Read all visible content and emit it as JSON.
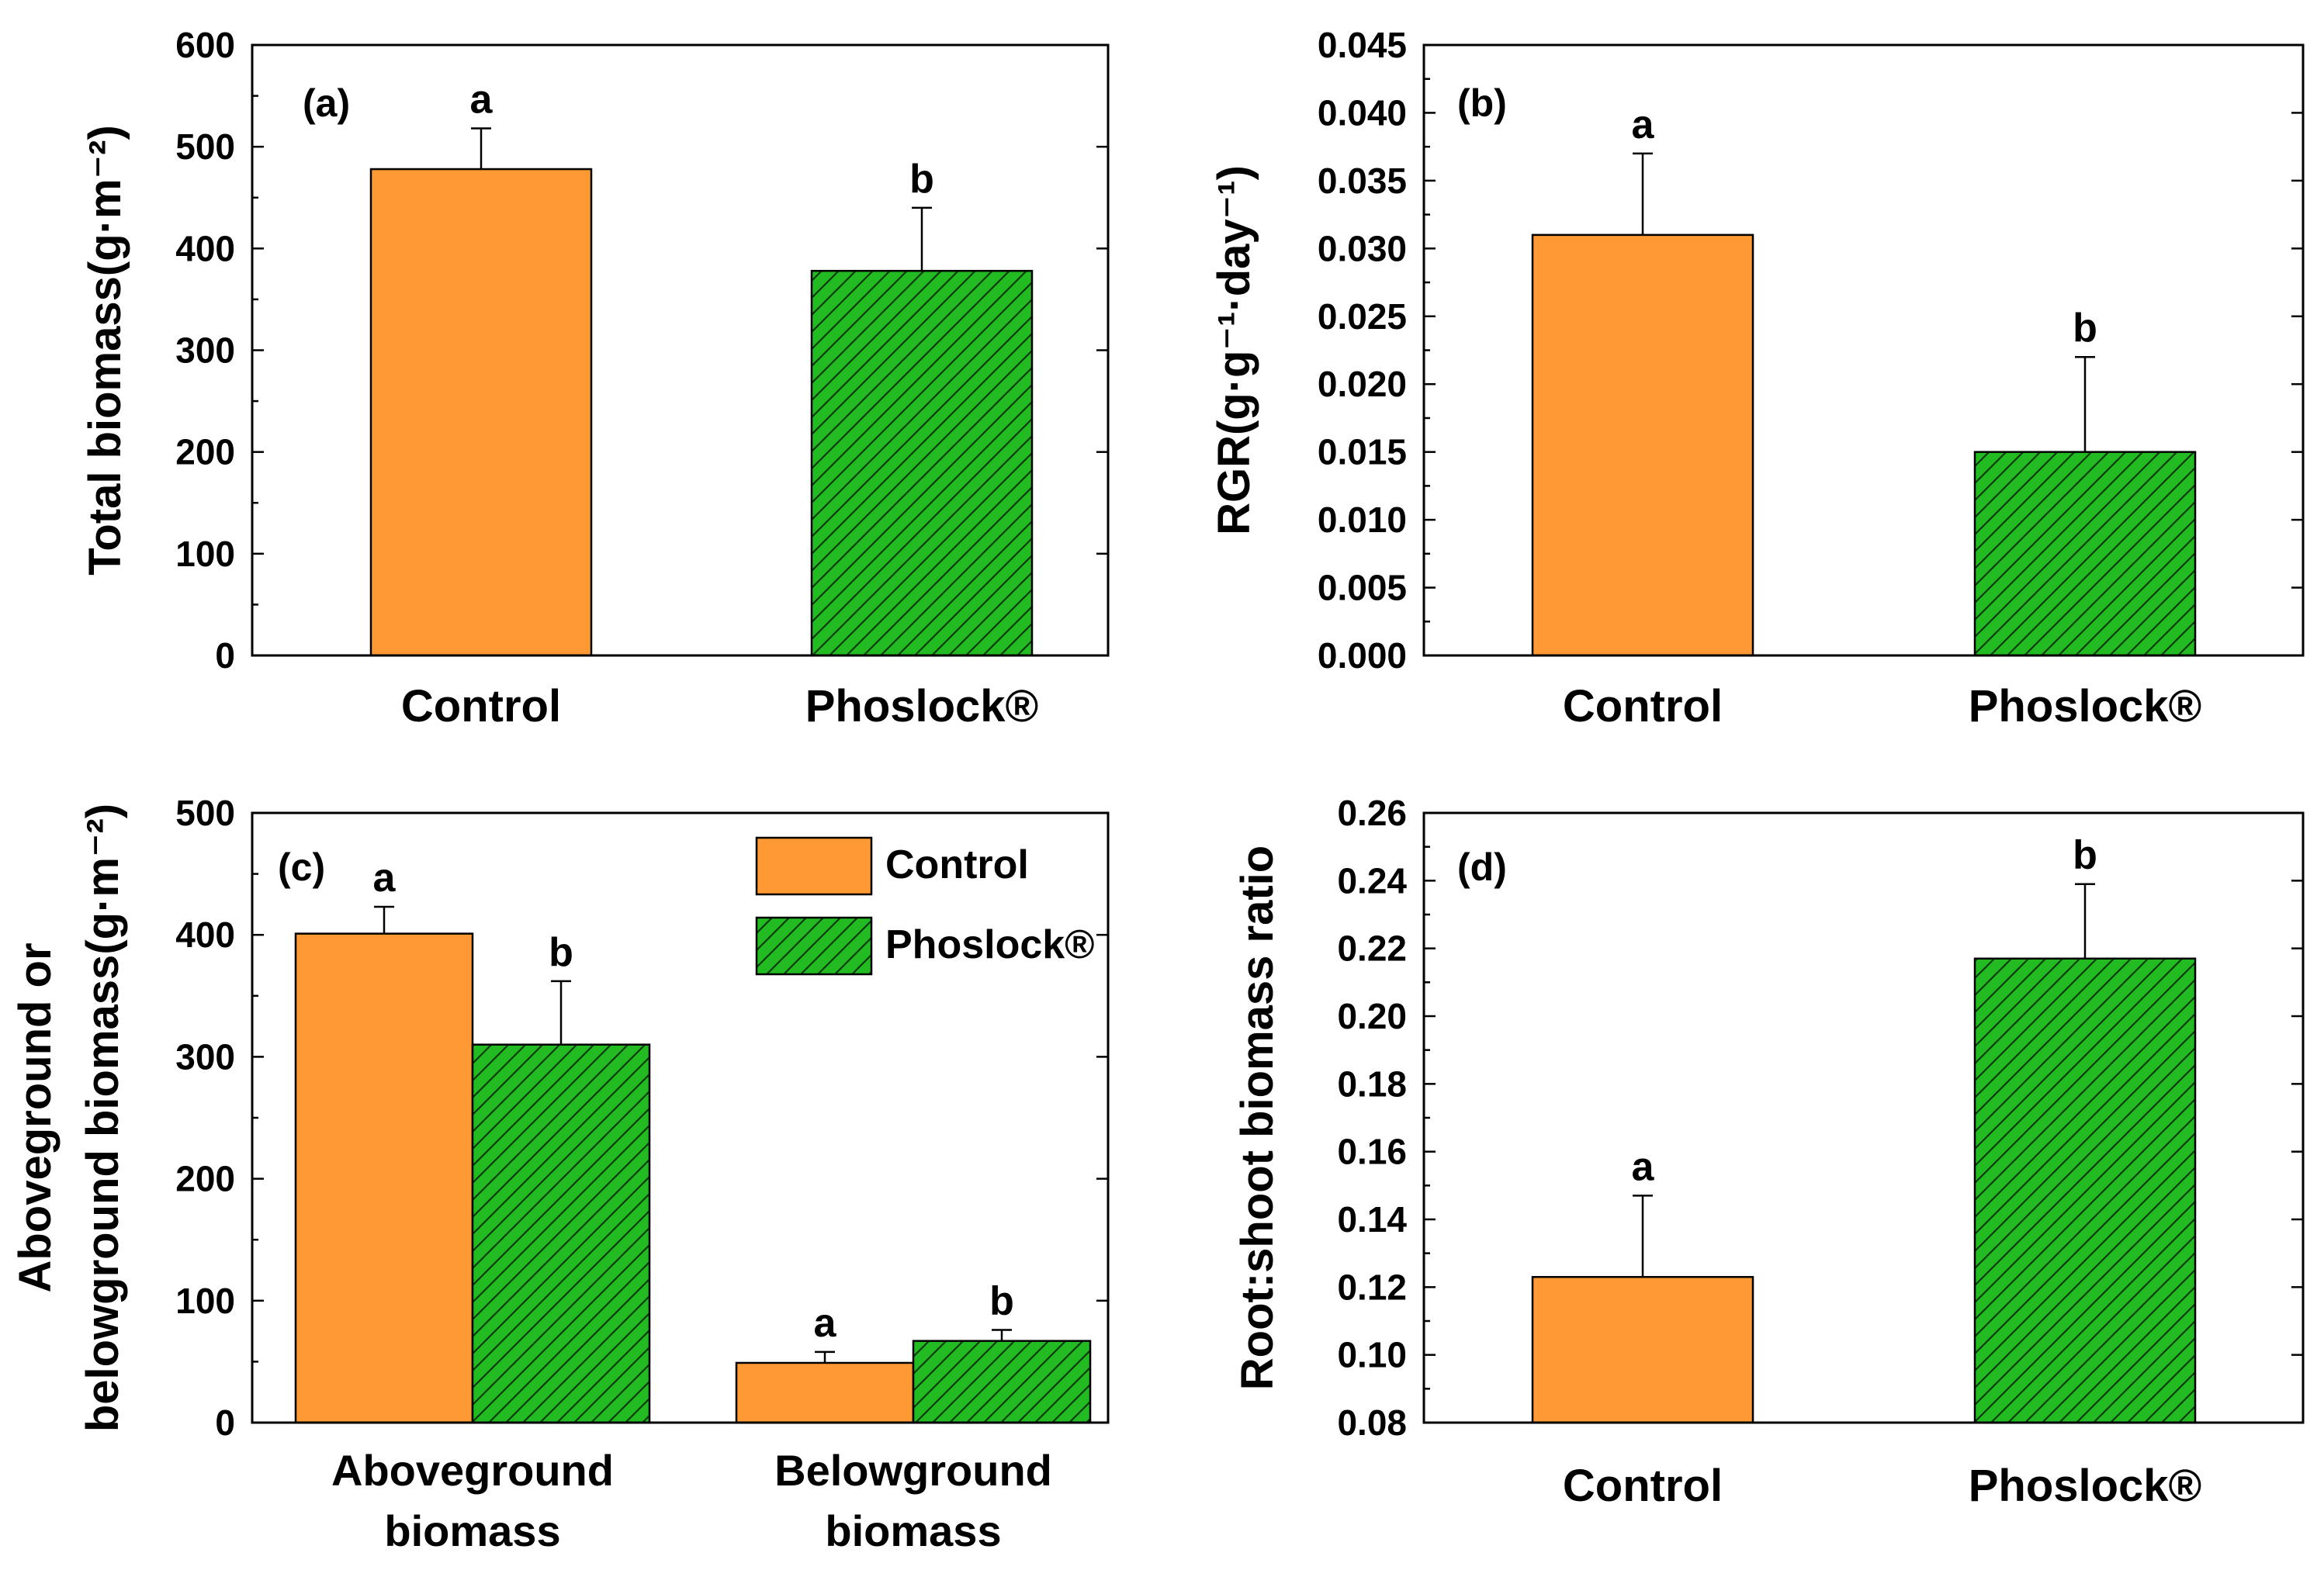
{
  "colors": {
    "control": "#FF9933",
    "phoslock": "#22BB22",
    "hatch": "#0A3A0A",
    "axis": "#000000"
  },
  "chart_data": [
    {
      "type": "bar",
      "panel_label": "(a)",
      "ylabel": "Total biomass(g·m⁻²)",
      "ylim": [
        0,
        600
      ],
      "yticks": [
        "0",
        "100",
        "200",
        "300",
        "400",
        "500",
        "600"
      ],
      "categories": [
        "Control",
        "Phoslock®"
      ],
      "values": [
        478,
        378
      ],
      "errors": [
        40,
        62
      ],
      "letters": [
        "a",
        "b"
      ]
    },
    {
      "type": "bar",
      "panel_label": "(b)",
      "ylabel": "RGR(g·g⁻¹·day⁻¹)",
      "ylim": [
        0,
        0.045
      ],
      "yticks": [
        "0.000",
        "0.005",
        "0.010",
        "0.015",
        "0.020",
        "0.025",
        "0.030",
        "0.035",
        "0.040",
        "0.045"
      ],
      "categories": [
        "Control",
        "Phoslock®"
      ],
      "values": [
        0.031,
        0.015
      ],
      "errors": [
        0.006,
        0.007
      ],
      "letters": [
        "a",
        "b"
      ]
    },
    {
      "type": "bar",
      "panel_label": "(c)",
      "ylabel_line1": "Aboveground or",
      "ylabel_line2": "belowground biomass(g·m⁻²)",
      "ylim": [
        0,
        500
      ],
      "yticks": [
        "0",
        "100",
        "200",
        "300",
        "400",
        "500"
      ],
      "groups": [
        {
          "label_line1": "Aboveground",
          "label_line2": "biomass"
        },
        {
          "label_line1": "Belowground",
          "label_line2": "biomass"
        }
      ],
      "series": [
        {
          "name": "Control",
          "values": [
            401,
            49
          ],
          "errors": [
            22,
            9
          ],
          "letters": [
            "a",
            "a"
          ]
        },
        {
          "name": "Phoslock®",
          "values": [
            310,
            67
          ],
          "errors": [
            52,
            9
          ],
          "letters": [
            "b",
            "b"
          ]
        }
      ],
      "legend": [
        "Control",
        "Phoslock®"
      ],
      "legend_position": "top-right"
    },
    {
      "type": "bar",
      "panel_label": "(d)",
      "ylabel": "Root:shoot biomass ratio",
      "ylim": [
        0.08,
        0.26
      ],
      "yticks": [
        "0.08",
        "0.10",
        "0.12",
        "0.14",
        "0.16",
        "0.18",
        "0.20",
        "0.22",
        "0.24",
        "0.26"
      ],
      "categories": [
        "Control",
        "Phoslock®"
      ],
      "values": [
        0.123,
        0.217
      ],
      "errors": [
        0.024,
        0.022
      ],
      "letters": [
        "a",
        "b"
      ]
    }
  ]
}
